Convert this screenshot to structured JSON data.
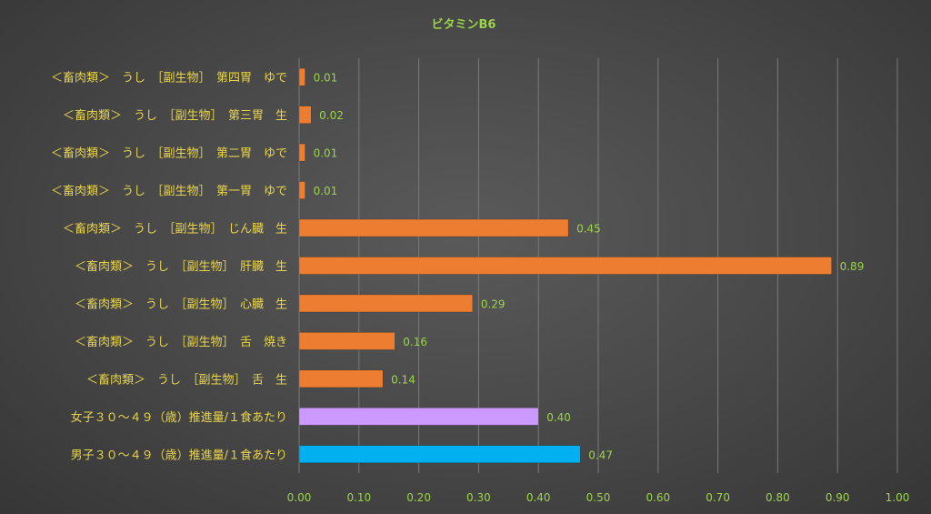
{
  "chart_data": {
    "type": "bar",
    "orientation": "horizontal",
    "title": "ビタミンB6",
    "categories": [
      "＜畜肉類＞　うし　［副生物］　第四胃　ゆで",
      "＜畜肉類＞　うし　［副生物］　第三胃　生",
      "＜畜肉類＞　うし　［副生物］　第二胃　ゆで",
      "＜畜肉類＞　うし　［副生物］　第一胃　ゆで",
      "＜畜肉類＞　うし　［副生物］　じん臓　生",
      "＜畜肉類＞　うし　［副生物］　肝臓　生",
      "＜畜肉類＞　うし　［副生物］　心臓　生",
      "＜畜肉類＞　うし　［副生物］　舌　焼き",
      "＜畜肉類＞　うし　［副生物］　舌　生",
      "女子３０～４９（歳）推進量/１食あたり",
      "男子３０～４９（歳）推進量/１食あたり"
    ],
    "values": [
      0.01,
      0.02,
      0.01,
      0.01,
      0.45,
      0.89,
      0.29,
      0.16,
      0.14,
      0.4,
      0.47
    ],
    "value_labels": [
      "0.01",
      "0.02",
      "0.01",
      "0.01",
      "0.45",
      "0.89",
      "0.29",
      "0.16",
      "0.14",
      "0.40",
      "0.47"
    ],
    "colors": [
      "#ed7d31",
      "#ed7d31",
      "#ed7d31",
      "#ed7d31",
      "#ed7d31",
      "#ed7d31",
      "#ed7d31",
      "#ed7d31",
      "#ed7d31",
      "#cc99ff",
      "#00b0f0"
    ],
    "xlim": [
      0,
      1.0
    ],
    "xticks": [
      "0.00",
      "0.10",
      "0.20",
      "0.30",
      "0.40",
      "0.50",
      "0.60",
      "0.70",
      "0.80",
      "0.90",
      "1.00"
    ],
    "grid": true,
    "legend": "none"
  }
}
